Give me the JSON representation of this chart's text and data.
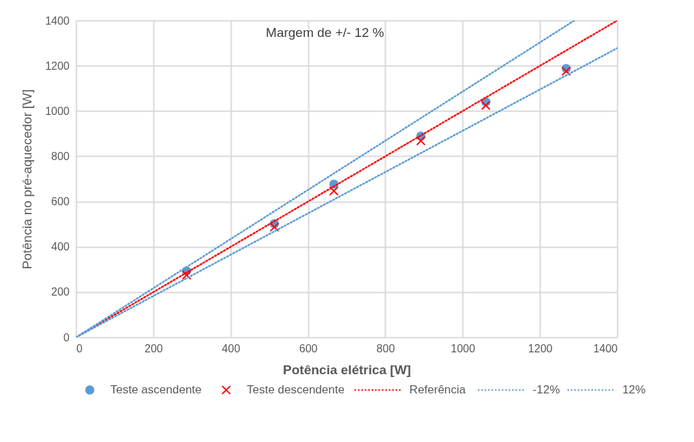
{
  "chart_data": {
    "type": "scatter",
    "xlabel": "Potência elétrica [W]",
    "ylabel": "Potência no pré-aquecedor [W]",
    "xlim": [
      0,
      1400
    ],
    "ylim": [
      0,
      1400
    ],
    "xticks": [
      0,
      200,
      400,
      600,
      800,
      1000,
      1200,
      1400
    ],
    "yticks": [
      0,
      200,
      400,
      600,
      800,
      1000,
      1200,
      1400
    ],
    "grid": true,
    "legend": "bottom",
    "annotations": [
      "Margem de +/- 12 %"
    ],
    "x": [
      286,
      513,
      667,
      892,
      1060,
      1268
    ],
    "series": [
      {
        "name": "Teste ascendente",
        "marker": "circle",
        "color": "#5b9bd5",
        "values": [
          293,
          502,
          677,
          889,
          1040,
          1188
        ]
      },
      {
        "name": "Teste descendente",
        "marker": "cross",
        "color": "#ff0000",
        "values": [
          275,
          487,
          647,
          868,
          1025,
          1176
        ]
      },
      {
        "name": "Referência",
        "type": "line",
        "line_style": "dotted",
        "color": "#ff0000",
        "x": [
          0,
          1400
        ],
        "values": [
          0,
          1400
        ]
      },
      {
        "name": "-12%",
        "type": "line",
        "line_style": "dotted",
        "color": "#5b9bd5",
        "x": [
          0,
          1289
        ],
        "values": [
          0,
          1400
        ]
      },
      {
        "name": "12%",
        "type": "line",
        "line_style": "dotted",
        "color": "#5b9bd5",
        "x": [
          0,
          1400
        ],
        "values": [
          0,
          1278
        ]
      }
    ]
  }
}
